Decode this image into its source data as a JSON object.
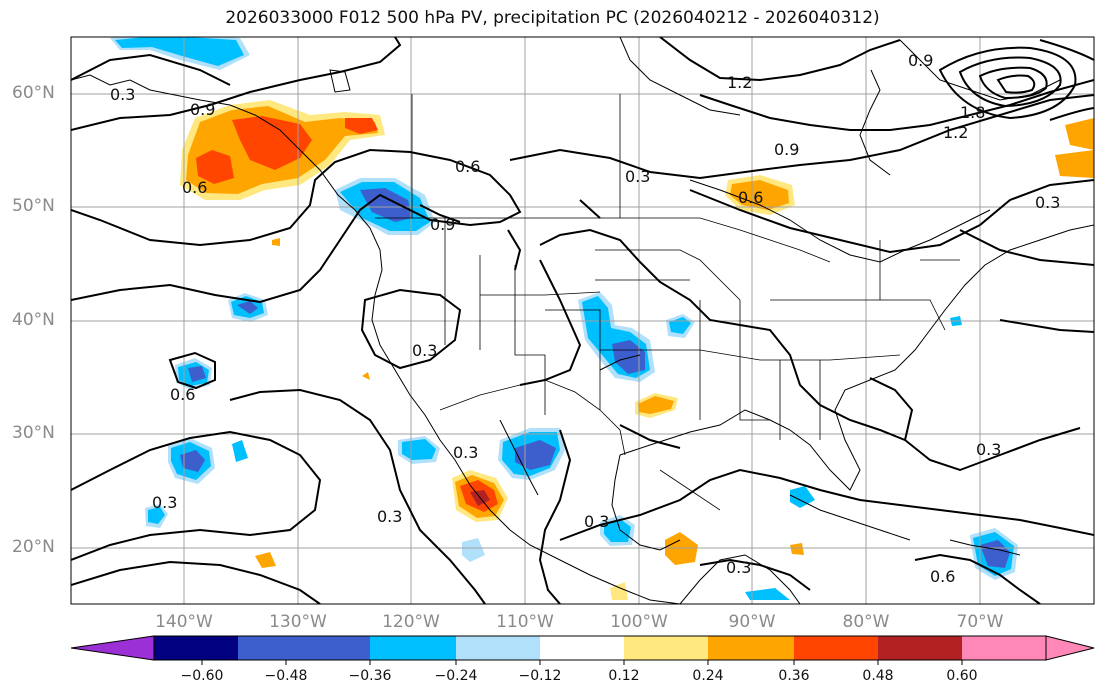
{
  "title": "2026033000 F012 500 hPa PV, precipitation PC (2026040212 - 2026040312)",
  "axes": {
    "lat_ticks": [
      "60°N",
      "50°N",
      "40°N",
      "30°N",
      "20°N"
    ],
    "lon_ticks": [
      "140°W",
      "130°W",
      "120°W",
      "110°W",
      "100°W",
      "90°W",
      "80°W",
      "70°W"
    ]
  },
  "colorbar": {
    "levels": [
      "−0.60",
      "−0.48",
      "−0.36",
      "−0.24",
      "−0.12",
      "0.12",
      "0.24",
      "0.36",
      "0.48",
      "0.60"
    ],
    "colors": [
      "#9b30d6",
      "#000080",
      "#3c5fcd",
      "#00bfff",
      "#b0e0fa",
      "#ffffff",
      "#ffe880",
      "#ffa500",
      "#ff4500",
      "#b22222",
      "#ff88b8"
    ]
  },
  "contour_labels": {
    "v_1_2_a": "1.2",
    "v_1_2_b": "1.2",
    "v_1_8": "1.8",
    "v_0_9_a": "0.9",
    "v_0_9_b": "0.9",
    "v_0_9_c": "0.9",
    "v_0_9_d": "0.9",
    "v_0_6_a": "0.6",
    "v_0_6_b": "0.6",
    "v_0_6_c": "0.6",
    "v_0_6_d": "0.6",
    "v_0_6_e": "0.6",
    "v_0_3_a": "0.3",
    "v_0_3_b": "0.3",
    "v_0_3_c": "0.3",
    "v_0_3_d": "0.3",
    "v_0_3_e": "0.3",
    "v_0_3_f": "0.3",
    "v_0_3_g": "0.3",
    "v_0_3_h": "0.3",
    "v_0_3_i": "0.3",
    "v_0_3_j": "0.3"
  }
}
